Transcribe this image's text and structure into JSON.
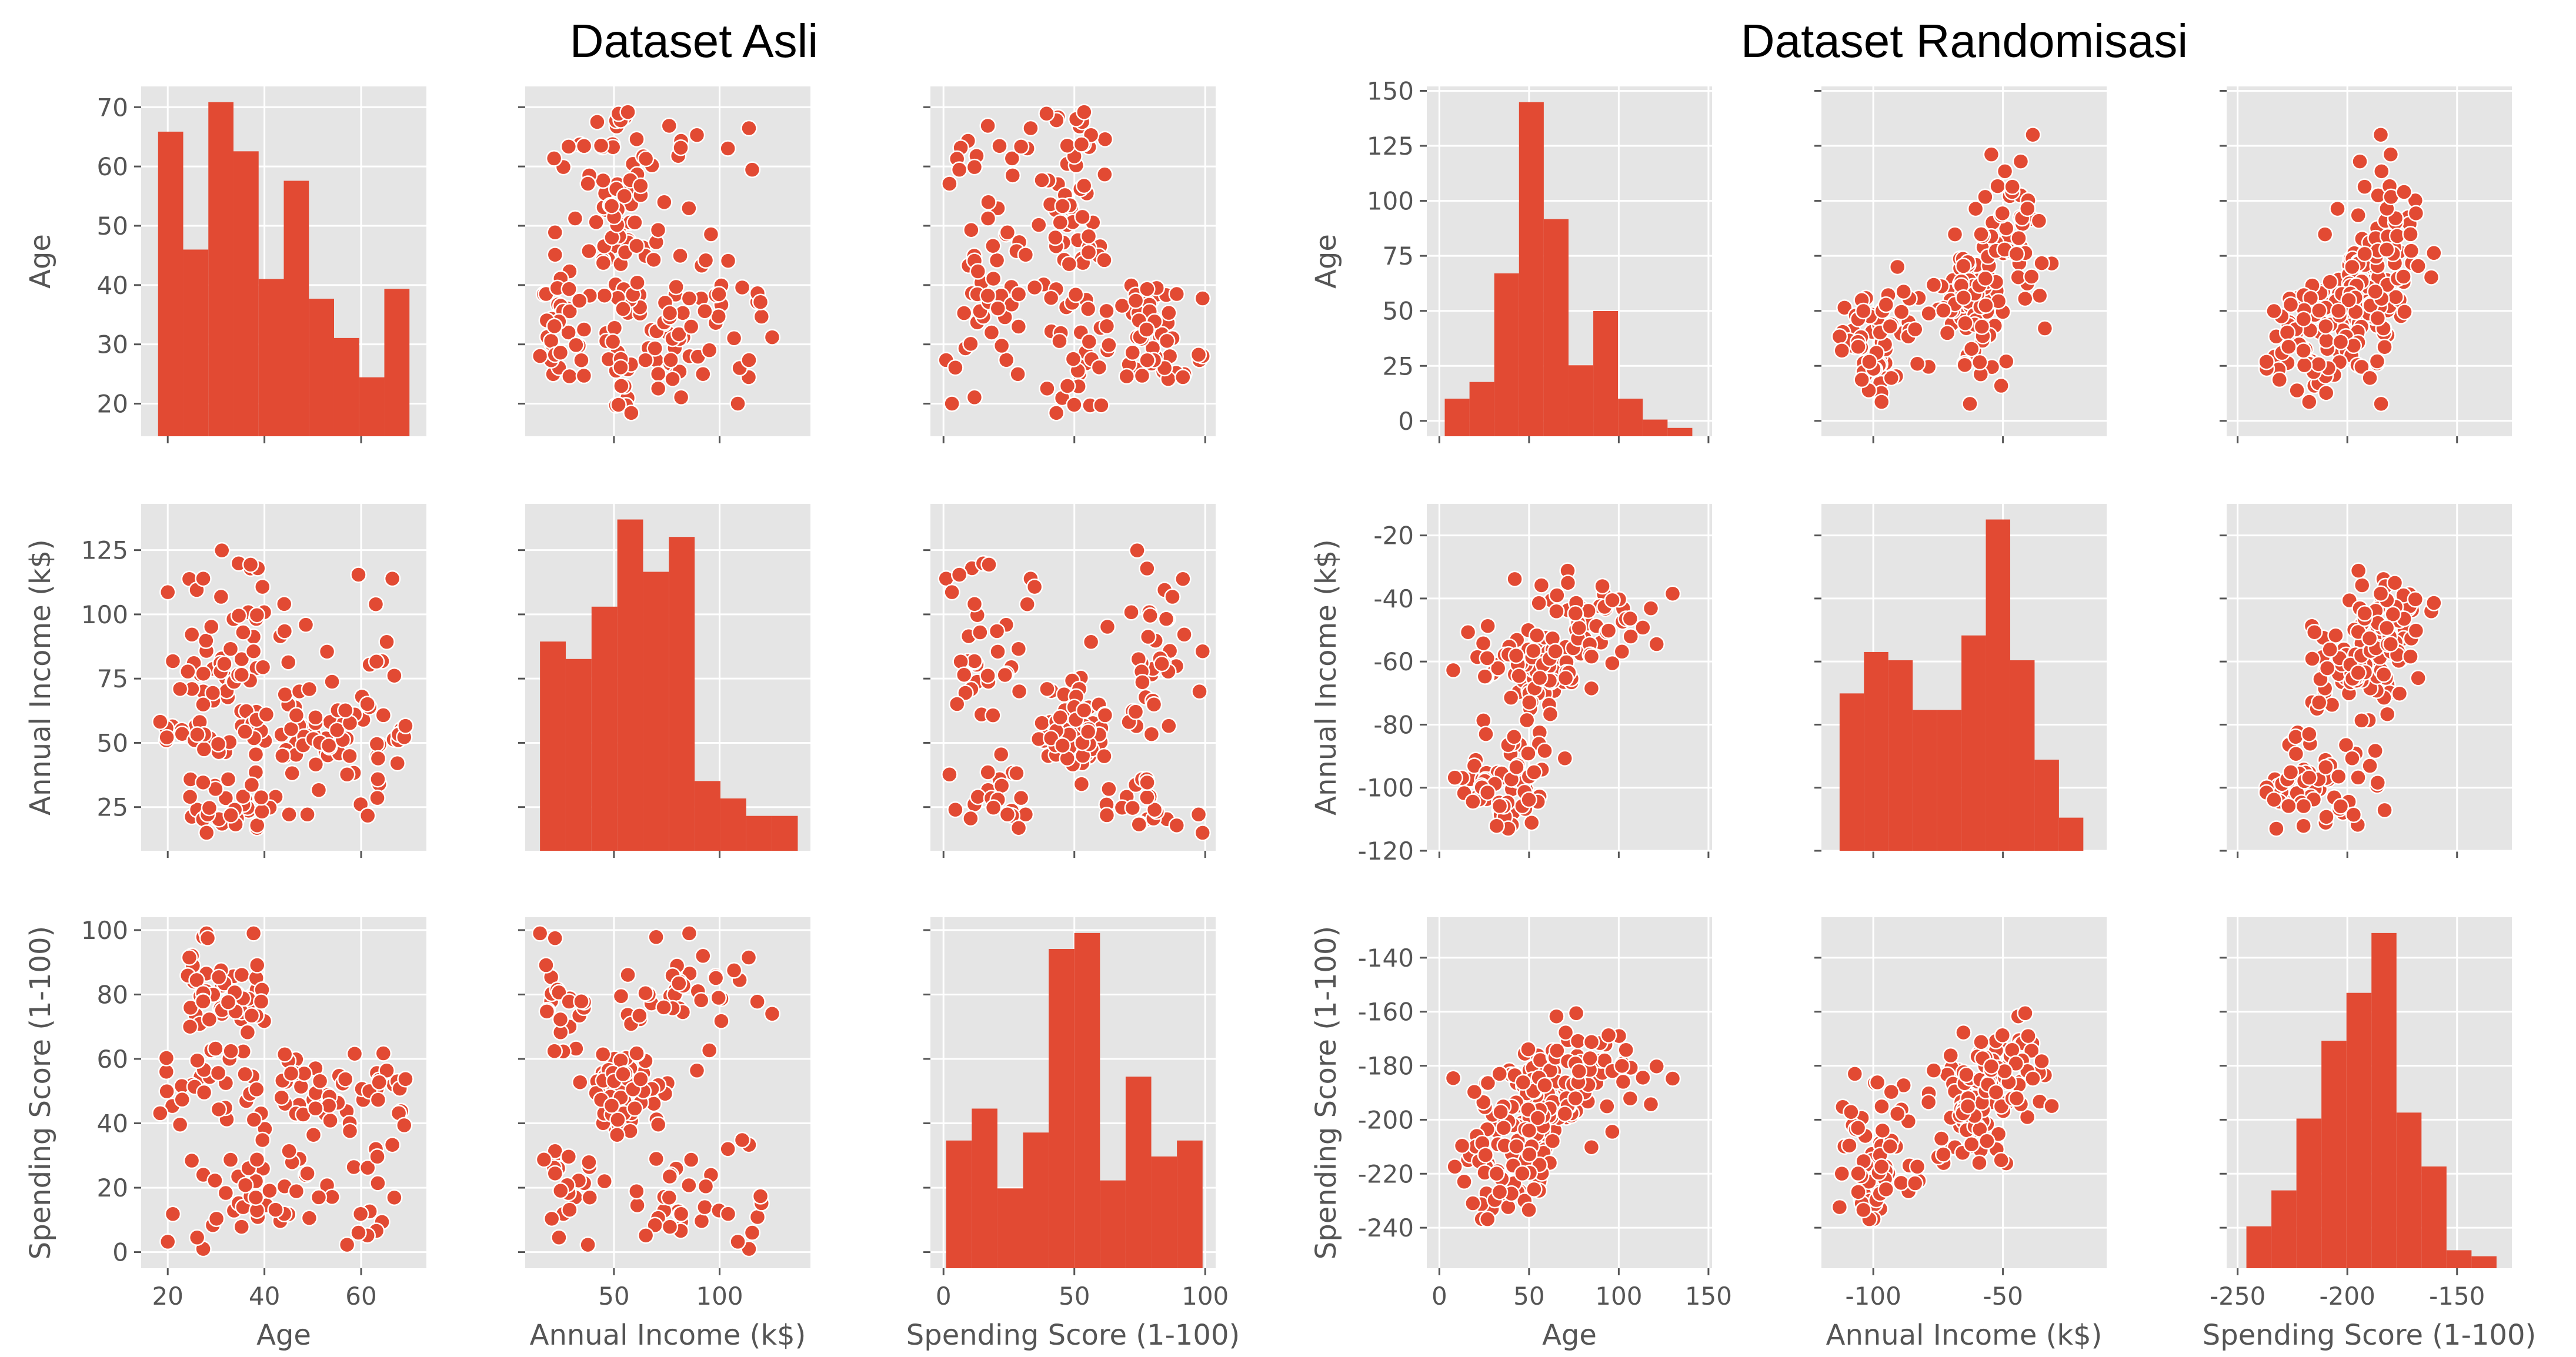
{
  "titles": {
    "left": "Dataset Asli",
    "right": "Dataset Randomisasi"
  },
  "colors": {
    "bg": "#e5e5e5",
    "grid": "#ffffff",
    "mark": "#e24a33",
    "text": "#555555"
  },
  "chart_data": [
    {
      "panel": "left",
      "type": "pairplot",
      "variables": [
        "Age",
        "Annual Income (k$)",
        "Spending Score (1-100)"
      ],
      "axes": {
        "Age": {
          "lim": [
            14.5,
            73.5
          ],
          "ticks": [
            20,
            40,
            60
          ],
          "yticks": [
            20,
            30,
            40,
            50,
            60,
            70
          ]
        },
        "Annual Income (k$)": {
          "lim": [
            8,
            143
          ],
          "ticks": [
            50,
            100
          ],
          "yticks": [
            25,
            50,
            75,
            100,
            125
          ]
        },
        "Spending Score (1-100)": {
          "lim": [
            -5,
            104
          ],
          "ticks": [
            0,
            50,
            100
          ],
          "yticks": [
            0,
            20,
            40,
            60,
            80,
            100
          ]
        }
      },
      "histograms": [
        {
          "var": "Age",
          "edges": [
            18,
            23.2,
            28.4,
            33.6,
            38.8,
            44,
            49.2,
            54.4,
            59.6,
            64.8,
            70
          ],
          "counts": [
            31,
            19,
            34,
            29,
            16,
            26,
            14,
            10,
            6,
            15
          ]
        },
        {
          "var": "Annual Income (k$)",
          "edges": [
            15,
            27.2,
            39.4,
            51.6,
            63.8,
            76,
            88.2,
            100.4,
            112.6,
            124.8,
            137
          ],
          "counts": [
            24,
            22,
            28,
            38,
            32,
            36,
            8,
            6,
            4,
            4
          ]
        },
        {
          "var": "Spending Score (1-100)",
          "edges": [
            1,
            10.8,
            20.6,
            30.4,
            40.2,
            50,
            59.8,
            69.6,
            79.4,
            89.2,
            99
          ],
          "counts": [
            16,
            20,
            10,
            17,
            40,
            42,
            11,
            24,
            14,
            16
          ]
        }
      ],
      "scatter_note": "off-diagonal cells plot every pair of variables; point clouds are sampled to match the figure"
    },
    {
      "panel": "right",
      "type": "pairplot",
      "variables": [
        "Age",
        "Annual Income (k$)",
        "Spending Score (1-100)"
      ],
      "axes": {
        "Age": {
          "lim": [
            -7,
            152
          ],
          "ticks": [
            0,
            50,
            100,
            150
          ],
          "yticks": [
            0,
            25,
            50,
            75,
            100,
            125,
            150
          ]
        },
        "Annual Income (k$)": {
          "lim": [
            -120,
            -10
          ],
          "ticks": [
            -100,
            -50
          ],
          "yticks": [
            -120,
            -100,
            -80,
            -60,
            -40,
            -20
          ]
        },
        "Spending Score (1-100)": {
          "lim": [
            -255,
            -125
          ],
          "ticks": [
            -250,
            -200,
            -150
          ],
          "yticks": [
            -240,
            -220,
            -200,
            -180,
            -160,
            -140
          ]
        }
      },
      "histograms": [
        {
          "var": "Age",
          "edges": [
            3,
            16.8,
            30.6,
            44.4,
            58.2,
            72,
            85.8,
            99.6,
            113.4,
            127.2,
            141
          ],
          "counts": [
            9,
            13,
            39,
            80,
            52,
            17,
            30,
            9,
            4,
            2
          ]
        },
        {
          "var": "Annual Income (k$)",
          "edges": [
            -113,
            -103.6,
            -94.2,
            -84.8,
            -75.4,
            -66,
            -56.6,
            -47.2,
            -37.8,
            -28.4,
            -19
          ],
          "counts": [
            19,
            24,
            23,
            17,
            17,
            26,
            40,
            23,
            11,
            4
          ]
        },
        {
          "var": "Spending Score (1-100)",
          "edges": [
            -246,
            -234.6,
            -223.2,
            -211.8,
            -200.4,
            -189,
            -177.6,
            -166.2,
            -154.8,
            -143.4,
            -132
          ],
          "counts": [
            7,
            13,
            25,
            38,
            46,
            56,
            26,
            17,
            3,
            2
          ]
        }
      ],
      "scatter_note": "off-diagonal cells plot every pair of variables; point clouds are sampled to match the figure"
    }
  ]
}
